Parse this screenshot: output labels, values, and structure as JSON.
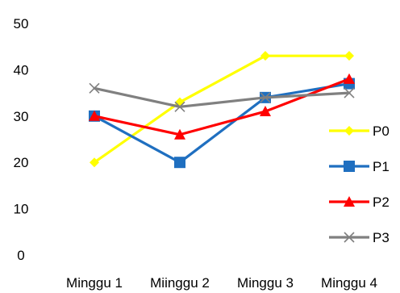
{
  "chart_data": {
    "type": "line",
    "title": "",
    "xlabel": "",
    "ylabel": "",
    "categories": [
      "Minggu 1",
      "Miinggu 2",
      "Minggu 3",
      "Minggu 4"
    ],
    "ylim": [
      0,
      50
    ],
    "yticks": [
      "0",
      "10",
      "20",
      "30",
      "40",
      "50"
    ],
    "grid": false,
    "legend_position": "right",
    "series": [
      {
        "name": "P0",
        "values": [
          20,
          33,
          43,
          43
        ],
        "color": "#ffff00",
        "marker": "diamond"
      },
      {
        "name": "P1",
        "values": [
          30,
          20,
          34,
          37
        ],
        "color": "#1f6fc0",
        "marker": "square"
      },
      {
        "name": "P2",
        "values": [
          30,
          26,
          31,
          38
        ],
        "color": "#ff0000",
        "marker": "triangle"
      },
      {
        "name": "P3",
        "values": [
          36,
          32,
          34,
          35
        ],
        "color": "#808080",
        "marker": "x"
      }
    ]
  }
}
